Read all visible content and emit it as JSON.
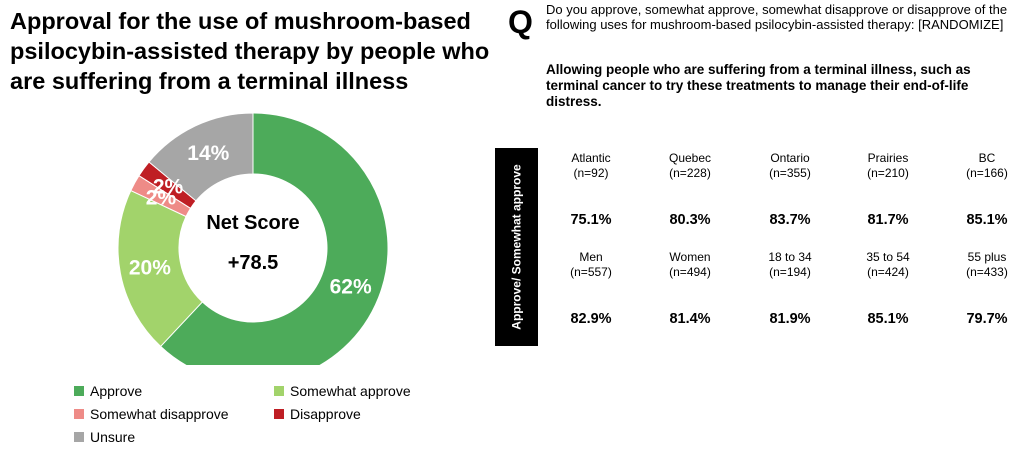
{
  "title": "Approval for the use of mushroom-based psilocybin-assisted therapy by people who are suffering from a terminal illness",
  "question": {
    "letter": "Q",
    "text": "Do you approve, somewhat approve, somewhat disapprove or disapprove of the following uses for mushroom-based psilocybin-assisted therapy: [RANDOMIZE]",
    "item": "Allowing people who are suffering from a terminal illness, such as terminal cancer to try these treatments to manage their end-of-life distress."
  },
  "center": {
    "label": "Net Score",
    "value": "+78.5"
  },
  "chart_data": [
    {
      "type": "pie",
      "title": "Approval for the use of mushroom-based psilocybin-assisted therapy by people who are suffering from a terminal illness",
      "categories": [
        "Approve",
        "Somewhat approve",
        "Somewhat disapprove",
        "Disapprove",
        "Unsure"
      ],
      "values": [
        62,
        20,
        2,
        2,
        14
      ],
      "labels": [
        "62%",
        "20%",
        "2%",
        "2%",
        "14%"
      ],
      "colors": [
        "#4dab5a",
        "#a2d36b",
        "#ee8b87",
        "#bf1e24",
        "#a6a6a6"
      ],
      "center_label": "Net Score",
      "center_value": "+78.5",
      "legend_position": "bottom"
    },
    {
      "type": "table",
      "row_label": "Approve/ Somewhat approve",
      "rows": [
        {
          "groups": [
            {
              "name": "Atlantic",
              "n": "(n=92)",
              "value": "75.1%"
            },
            {
              "name": "Quebec",
              "n": "(n=228)",
              "value": "80.3%"
            },
            {
              "name": "Ontario",
              "n": "(n=355)",
              "value": "83.7%"
            },
            {
              "name": "Prairies",
              "n": "(n=210)",
              "value": "81.7%"
            },
            {
              "name": "BC",
              "n": "(n=166)",
              "value": "85.1%"
            }
          ]
        },
        {
          "groups": [
            {
              "name": "Men",
              "n": "(n=557)",
              "value": "82.9%"
            },
            {
              "name": "Women",
              "n": "(n=494)",
              "value": "81.4%"
            },
            {
              "name": "18 to 34",
              "n": "(n=194)",
              "value": "81.9%"
            },
            {
              "name": "35 to 54",
              "n": "(n=424)",
              "value": "85.1%"
            },
            {
              "name": "55 plus",
              "n": "(n=433)",
              "value": "79.7%"
            }
          ]
        }
      ]
    }
  ]
}
